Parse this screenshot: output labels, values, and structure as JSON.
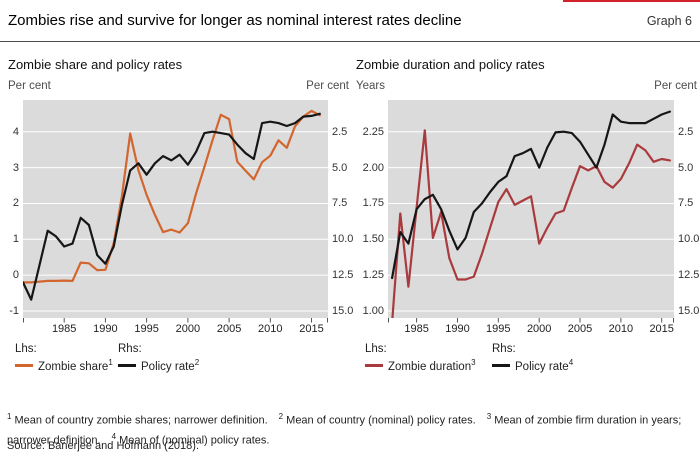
{
  "header": {
    "title": "Zombies rise and survive for longer as nominal interest rates decline",
    "graph_label": "Graph 6"
  },
  "panels": [
    {
      "title": "Zombie share and policy rates",
      "left_caption": "Per cent",
      "right_caption": "Per cent",
      "legend": {
        "lhs_heading": "Lhs:",
        "lhs_item": {
          "label": "Zombie share",
          "sup": "1"
        },
        "rhs_heading": "Rhs:",
        "rhs_item": {
          "label": "Policy rate",
          "sup": "2"
        }
      }
    },
    {
      "title": "Zombie duration and policy rates",
      "left_caption": "Years",
      "right_caption": "Per cent",
      "legend": {
        "lhs_heading": "Lhs:",
        "lhs_item": {
          "label": "Zombie duration",
          "sup": "3"
        },
        "rhs_heading": "Rhs:",
        "rhs_item": {
          "label": "Policy rate",
          "sup": "4"
        }
      }
    }
  ],
  "chart_data": [
    {
      "type": "line",
      "title": "Zombie share and policy rates",
      "grid": true,
      "x_domain": [
        1980,
        2017
      ],
      "x_ticks": [
        1985,
        1990,
        1995,
        2000,
        2005,
        2010,
        2015
      ],
      "left_axis": {
        "caption": "Per cent",
        "ticks": [
          4,
          3,
          2,
          1,
          0,
          -1
        ],
        "decimals": 0
      },
      "right_axis": {
        "caption": "Per cent",
        "ticks": [
          2.5,
          5.0,
          7.5,
          10.0,
          12.5,
          15.0
        ],
        "decimals": 1,
        "inverted": true
      },
      "series": [
        {
          "name": "Zombie share",
          "axis": "left",
          "color": "#d2662e",
          "x": [
            1980,
            1981,
            1982,
            1983,
            1984,
            1985,
            1986,
            1987,
            1988,
            1989,
            1990,
            1991,
            1992,
            1993,
            1994,
            1995,
            1996,
            1997,
            1998,
            1999,
            2000,
            2001,
            2002,
            2003,
            2004,
            2005,
            2006,
            2007,
            2008,
            2009,
            2010,
            2011,
            2012,
            2013,
            2014,
            2015,
            2016
          ],
          "values": [
            -0.2,
            -0.2,
            -0.18,
            -0.16,
            -0.16,
            -0.15,
            -0.16,
            0.35,
            0.33,
            0.14,
            0.15,
            0.89,
            2.2,
            3.95,
            2.93,
            2.24,
            1.68,
            1.2,
            1.27,
            1.19,
            1.45,
            2.28,
            3.02,
            3.77,
            4.47,
            4.35,
            3.16,
            2.91,
            2.67,
            3.15,
            3.33,
            3.76,
            3.55,
            4.15,
            4.42,
            4.58,
            4.46
          ]
        },
        {
          "name": "Policy rate",
          "axis": "right",
          "color": "#161616",
          "x": [
            1980,
            1981,
            1982,
            1983,
            1984,
            1985,
            1986,
            1987,
            1988,
            1989,
            1990,
            1991,
            1992,
            1993,
            1994,
            1995,
            1996,
            1997,
            1998,
            1999,
            2000,
            2001,
            2002,
            2003,
            2004,
            2005,
            2006,
            2007,
            2008,
            2009,
            2010,
            2011,
            2012,
            2013,
            2014,
            2015,
            2016
          ],
          "values": [
            13.0,
            14.2,
            11.8,
            9.4,
            9.8,
            10.5,
            10.3,
            8.5,
            9.0,
            11.1,
            11.7,
            10.5,
            7.6,
            5.2,
            4.7,
            5.5,
            4.7,
            4.2,
            4.5,
            4.1,
            4.8,
            3.9,
            2.6,
            2.5,
            2.6,
            2.7,
            3.4,
            4.0,
            4.4,
            1.9,
            1.8,
            1.9,
            2.1,
            1.9,
            1.45,
            1.4,
            1.25
          ]
        }
      ]
    },
    {
      "type": "line",
      "title": "Zombie duration and policy rates",
      "grid": true,
      "x_domain": [
        1981.5,
        2016.5
      ],
      "x_ticks": [
        1985,
        1990,
        1995,
        2000,
        2005,
        2010,
        2015
      ],
      "left_axis": {
        "caption": "Years",
        "ticks": [
          2.25,
          2.0,
          1.75,
          1.5,
          1.25,
          1.0
        ],
        "decimals": 2
      },
      "right_axis": {
        "caption": "Per cent",
        "ticks": [
          2.5,
          5.0,
          7.5,
          10.0,
          12.5,
          15.0
        ],
        "decimals": 1,
        "inverted": true
      },
      "series": [
        {
          "name": "Zombie duration",
          "axis": "left",
          "color": "#a93a3d",
          "x": [
            1982,
            1983,
            1984,
            1985,
            1986,
            1987,
            1988,
            1989,
            1990,
            1991,
            1992,
            1993,
            1994,
            1995,
            1996,
            1997,
            1998,
            1999,
            2000,
            2001,
            2002,
            2003,
            2004,
            2005,
            2006,
            2007,
            2008,
            2009,
            2010,
            2011,
            2012,
            2013,
            2014,
            2015,
            2016
          ],
          "values": [
            0.92,
            1.68,
            1.17,
            1.72,
            2.26,
            1.51,
            1.69,
            1.37,
            1.22,
            1.22,
            1.24,
            1.4,
            1.58,
            1.76,
            1.85,
            1.74,
            1.77,
            1.8,
            1.47,
            1.58,
            1.68,
            1.7,
            1.86,
            2.01,
            1.98,
            2.01,
            1.9,
            1.86,
            1.92,
            2.03,
            2.16,
            2.12,
            2.04,
            2.06,
            2.05
          ]
        },
        {
          "name": "Policy rate",
          "axis": "right",
          "color": "#161616",
          "x": [
            1982,
            1983,
            1984,
            1985,
            1986,
            1987,
            1988,
            1989,
            1990,
            1991,
            1992,
            1993,
            1994,
            1995,
            1996,
            1997,
            1998,
            1999,
            2000,
            2001,
            2002,
            2003,
            2004,
            2005,
            2006,
            2007,
            2008,
            2009,
            2010,
            2011,
            2012,
            2013,
            2014,
            2015,
            2016
          ],
          "values": [
            12.7,
            9.5,
            10.3,
            7.9,
            7.2,
            6.9,
            7.9,
            9.4,
            10.7,
            9.9,
            8.1,
            7.5,
            6.7,
            6.0,
            5.6,
            4.2,
            4.0,
            3.7,
            5.0,
            3.6,
            2.55,
            2.5,
            2.6,
            3.2,
            4.1,
            5.0,
            3.4,
            1.3,
            1.8,
            1.9,
            1.9,
            1.9,
            1.6,
            1.3,
            1.1
          ]
        }
      ]
    }
  ],
  "footnotes": [
    {
      "sup": "1",
      "text": "Mean of country zombie shares; narrower definition."
    },
    {
      "sup": "2",
      "text": "Mean of country (nominal) policy rates."
    },
    {
      "sup": "3",
      "text": "Mean of zombie firm duration in years; narrower definition."
    },
    {
      "sup": "4",
      "text": "Mean of (nominal) policy rates."
    }
  ],
  "source": "Source: Banerjee and Hofmann (2018).",
  "theme": {
    "plot_background": "#dbdbdb",
    "gridline": "#ffffff",
    "accent_rule": "#d2232a",
    "orange": "#d2662e",
    "dark_red": "#a93a3d",
    "line_black": "#161616"
  }
}
